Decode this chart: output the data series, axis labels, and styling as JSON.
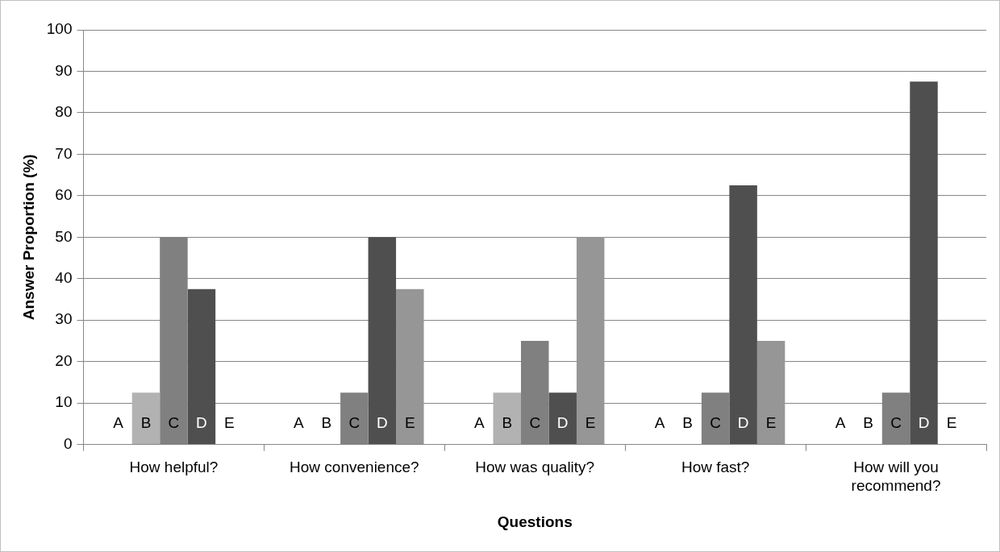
{
  "chart_data": {
    "type": "bar",
    "xlabel": "Questions",
    "ylabel": "Answer Proportion (%)",
    "categories": [
      "How helpful?",
      "How convenience?",
      "How was quality?",
      "How fast?",
      "How will you recommend?"
    ],
    "series": [
      {
        "name": "A",
        "values": [
          0,
          0,
          0,
          0,
          0
        ]
      },
      {
        "name": "B",
        "color": "#b2b2b2",
        "values": [
          12.5,
          0,
          12.5,
          0,
          0
        ]
      },
      {
        "name": "C",
        "color": "#808080",
        "values": [
          50,
          12.5,
          25,
          12.5,
          12.5
        ]
      },
      {
        "name": "D",
        "color": "#4f4f4f",
        "values": [
          37.5,
          50,
          12.5,
          62.5,
          87.5
        ]
      },
      {
        "name": "E",
        "color": "#969696",
        "values": [
          0,
          37.5,
          50,
          25,
          0
        ]
      }
    ],
    "ylim": [
      0,
      100
    ],
    "yticks": [
      0,
      10,
      20,
      30,
      40,
      50,
      60,
      70,
      80,
      90,
      100
    ],
    "grid": "y",
    "legend": false
  }
}
